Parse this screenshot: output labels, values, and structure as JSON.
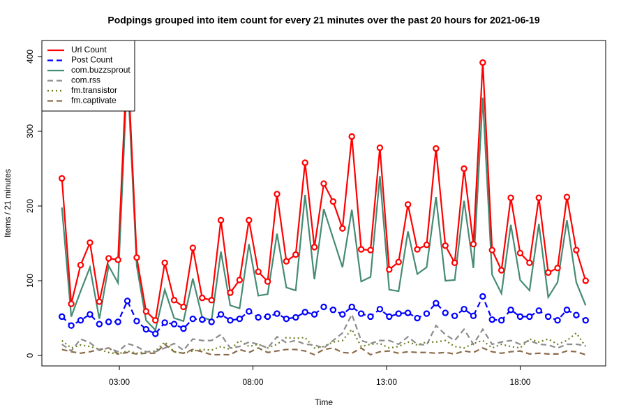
{
  "chart_data": {
    "type": "line",
    "title": "Podpings grouped into item count for every 21 minutes  over the past 20 hours for 2021-06-19",
    "x_label": "Time",
    "y_label": "Items / 21 minutes",
    "x": [
      0.85,
      1.2,
      1.55,
      1.9,
      2.25,
      2.6,
      2.95,
      3.3,
      3.65,
      4.0,
      4.35,
      4.7,
      5.05,
      5.4,
      5.75,
      6.1,
      6.45,
      6.8,
      7.15,
      7.5,
      7.85,
      8.2,
      8.55,
      8.9,
      9.25,
      9.6,
      9.95,
      10.3,
      10.65,
      11.0,
      11.35,
      11.7,
      12.05,
      12.4,
      12.75,
      13.1,
      13.45,
      13.8,
      14.15,
      14.5,
      14.85,
      15.2,
      15.55,
      15.9,
      16.25,
      16.6,
      16.95,
      17.3,
      17.65,
      18.0,
      18.35,
      18.7,
      19.05,
      19.4,
      19.75,
      20.1,
      20.45
    ],
    "xlim": [
      0.1,
      21.2
    ],
    "xticks": [
      {
        "value": 3,
        "label": "03:00"
      },
      {
        "value": 8,
        "label": "08:00"
      },
      {
        "value": 13,
        "label": "13:00"
      },
      {
        "value": 18,
        "label": "18:00"
      }
    ],
    "ylim": [
      -14,
      421.5
    ],
    "yticks": [
      0,
      100,
      200,
      300,
      400
    ],
    "legend": "topleft",
    "series": [
      {
        "name": "Url Count",
        "color": "#ff0000",
        "dash": "solid",
        "marker": "circle",
        "values": [
          237,
          69,
          121,
          151,
          72,
          130,
          128,
          403,
          131,
          59,
          47,
          124,
          74,
          65,
          144,
          77,
          74,
          181,
          84,
          101,
          181,
          112,
          99,
          216,
          126,
          135,
          258,
          145,
          230,
          206,
          170,
          293,
          142,
          141,
          278,
          115,
          125,
          202,
          142,
          148,
          277,
          147,
          124,
          250,
          149,
          392,
          141,
          114,
          211,
          137,
          124,
          211,
          111,
          117,
          212,
          141,
          100
        ]
      },
      {
        "name": "Post Count",
        "color": "#0000ff",
        "dash": "dashed",
        "marker": "circle",
        "values": [
          52,
          40,
          47,
          55,
          42,
          45,
          45,
          73,
          46,
          35,
          29,
          44,
          42,
          36,
          49,
          48,
          45,
          55,
          47,
          49,
          59,
          51,
          52,
          56,
          49,
          51,
          58,
          55,
          65,
          61,
          55,
          65,
          56,
          52,
          62,
          52,
          56,
          57,
          50,
          56,
          70,
          57,
          53,
          62,
          53,
          79,
          48,
          47,
          61,
          52,
          52,
          60,
          52,
          47,
          61,
          54,
          47
        ]
      },
      {
        "name": "com.buzzsprout",
        "color": "#458b74",
        "dash": "solid",
        "values": [
          198,
          52,
          86,
          118,
          49,
          120,
          97,
          380,
          120,
          47,
          34,
          88,
          50,
          46,
          103,
          51,
          47,
          139,
          67,
          63,
          149,
          80,
          82,
          163,
          91,
          87,
          215,
          102,
          196,
          157,
          118,
          195,
          99,
          105,
          240,
          88,
          86,
          166,
          109,
          118,
          212,
          100,
          101,
          207,
          117,
          345,
          108,
          83,
          175,
          101,
          87,
          176,
          78,
          98,
          181,
          98,
          67
        ]
      },
      {
        "name": "com.rss",
        "color": "#8c8c8c",
        "dash": "dashed",
        "values": [
          15,
          6,
          22,
          17,
          7,
          10,
          5,
          16,
          12,
          5,
          5,
          10,
          16,
          7,
          22,
          20,
          20,
          28,
          10,
          12,
          18,
          15,
          10,
          25,
          17,
          20,
          15,
          14,
          10,
          20,
          30,
          55,
          20,
          16,
          20,
          20,
          15,
          25,
          15,
          14,
          40,
          28,
          20,
          35,
          15,
          35,
          15,
          18,
          20,
          15,
          20,
          15,
          14,
          10,
          15,
          15,
          13
        ]
      },
      {
        "name": "fm.transistor",
        "color": "#6b7d1f",
        "dash": "dotted",
        "values": [
          20,
          10,
          14,
          12,
          8,
          4,
          2,
          6,
          3,
          5,
          6,
          18,
          5,
          3,
          6,
          8,
          7,
          12,
          8,
          20,
          12,
          15,
          10,
          15,
          24,
          23,
          24,
          10,
          12,
          18,
          20,
          35,
          12,
          15,
          16,
          10,
          12,
          18,
          14,
          18,
          18,
          20,
          12,
          10,
          16,
          20,
          10,
          15,
          12,
          10,
          22,
          18,
          22,
          15,
          20,
          30,
          12
        ]
      },
      {
        "name": "fm.captivate",
        "color": "#8b6b4a",
        "dash": "dashed",
        "values": [
          8,
          5,
          3,
          5,
          8,
          10,
          2,
          4,
          2,
          3,
          3,
          15,
          5,
          3,
          8,
          5,
          1,
          1,
          1,
          8,
          4,
          10,
          4,
          6,
          8,
          8,
          6,
          1,
          8,
          10,
          4,
          3,
          10,
          1,
          5,
          6,
          3,
          5,
          4,
          4,
          3,
          4,
          2,
          6,
          4,
          10,
          5,
          3,
          5,
          6,
          2,
          3,
          2,
          2,
          6,
          5,
          1
        ]
      }
    ]
  }
}
